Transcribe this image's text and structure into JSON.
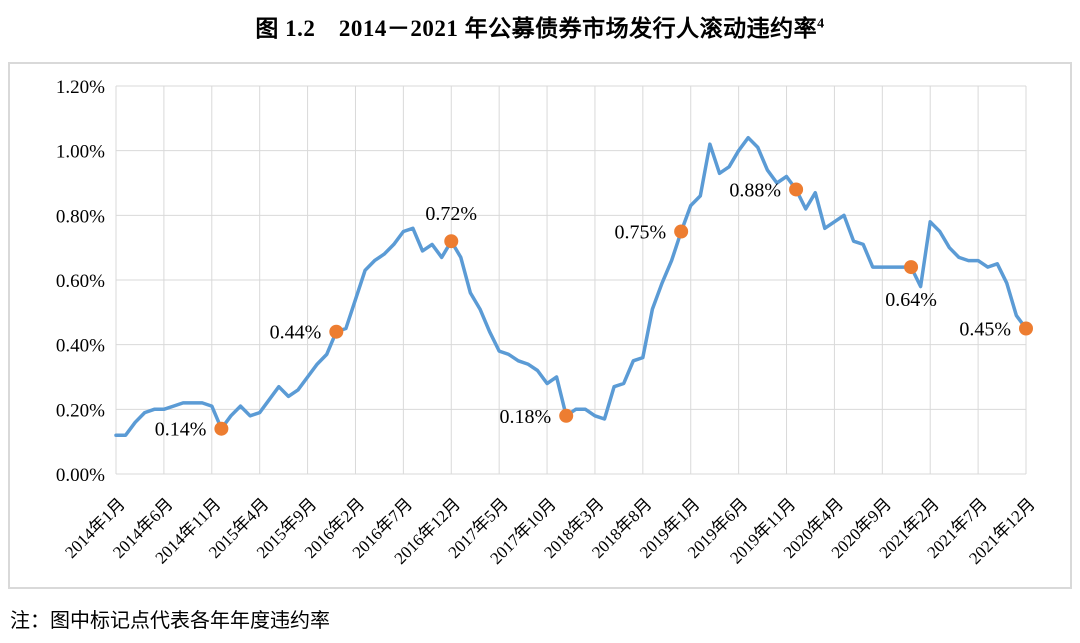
{
  "figure": {
    "title": "图 1.2　2014－2021 年公募债券市场发行人滚动违约率",
    "title_superscript": "4",
    "note": "注：图中标记点代表各年年度违约率"
  },
  "colors": {
    "line": "#5B9BD5",
    "marker": "#ED7D31",
    "grid": "#D9D9D9",
    "border": "#D9D9D9",
    "text": "#000000",
    "background": "#FFFFFF"
  },
  "chart_data": {
    "type": "line",
    "title": "图 1.2 2014－2021 年公募债券市场发行人滚动违约率⁴",
    "xlabel": "",
    "ylabel": "",
    "ylim": [
      0,
      1.2
    ],
    "grid": true,
    "legend": "none",
    "y_tick_labels": [
      "0.00%",
      "0.20%",
      "0.40%",
      "0.60%",
      "0.80%",
      "1.00%",
      "1.20%"
    ],
    "x_tick_every_n_months": 5,
    "x_tick_labels": [
      "2014年1月",
      "2014年6月",
      "2014年11月",
      "2015年4月",
      "2015年9月",
      "2016年2月",
      "2016年7月",
      "2016年12月",
      "2017年5月",
      "2017年10月",
      "2018年3月",
      "2018年8月",
      "2019年1月",
      "2019年6月",
      "2019年11月",
      "2020年4月",
      "2020年9月",
      "2021年2月",
      "2021年7月",
      "2021年12月"
    ],
    "series": [
      {
        "name": "公募债券市场发行人滚动违约率",
        "color": "#5B9BD5",
        "x_start": "2014年1月",
        "x_end": "2021年12月",
        "monthly_values_pct": [
          0.12,
          0.12,
          0.16,
          0.19,
          0.2,
          0.2,
          0.21,
          0.22,
          0.22,
          0.22,
          0.21,
          0.14,
          0.18,
          0.21,
          0.18,
          0.19,
          0.23,
          0.27,
          0.24,
          0.26,
          0.3,
          0.34,
          0.37,
          0.44,
          0.45,
          0.54,
          0.63,
          0.66,
          0.68,
          0.71,
          0.75,
          0.76,
          0.69,
          0.71,
          0.67,
          0.72,
          0.67,
          0.56,
          0.51,
          0.44,
          0.38,
          0.37,
          0.35,
          0.34,
          0.32,
          0.28,
          0.3,
          0.18,
          0.2,
          0.2,
          0.18,
          0.17,
          0.27,
          0.28,
          0.35,
          0.36,
          0.51,
          0.59,
          0.66,
          0.75,
          0.83,
          0.86,
          1.02,
          0.93,
          0.95,
          1.0,
          1.04,
          1.01,
          0.94,
          0.9,
          0.92,
          0.88,
          0.82,
          0.87,
          0.76,
          0.78,
          0.8,
          0.72,
          0.71,
          0.64,
          0.64,
          0.64,
          0.64,
          0.64,
          0.58,
          0.78,
          0.75,
          0.7,
          0.67,
          0.66,
          0.66,
          0.64,
          0.65,
          0.59,
          0.49,
          0.45
        ]
      }
    ],
    "annual_markers": {
      "color": "#ED7D31",
      "meaning": "图中标记点代表各年年度违约率",
      "points": [
        {
          "month_index": 11,
          "value": 0.14,
          "label": "0.14%",
          "label_position": "left"
        },
        {
          "month_index": 23,
          "value": 0.44,
          "label": "0.44%",
          "label_position": "left"
        },
        {
          "month_index": 35,
          "value": 0.72,
          "label": "0.72%",
          "label_position": "above"
        },
        {
          "month_index": 47,
          "value": 0.18,
          "label": "0.18%",
          "label_position": "left"
        },
        {
          "month_index": 59,
          "value": 0.75,
          "label": "0.75%",
          "label_position": "left"
        },
        {
          "month_index": 71,
          "value": 0.88,
          "label": "0.88%",
          "label_position": "left"
        },
        {
          "month_index": 83,
          "value": 0.64,
          "label": "0.64%",
          "label_position": "below"
        },
        {
          "month_index": 95,
          "value": 0.45,
          "label": "0.45%",
          "label_position": "left"
        }
      ]
    }
  }
}
